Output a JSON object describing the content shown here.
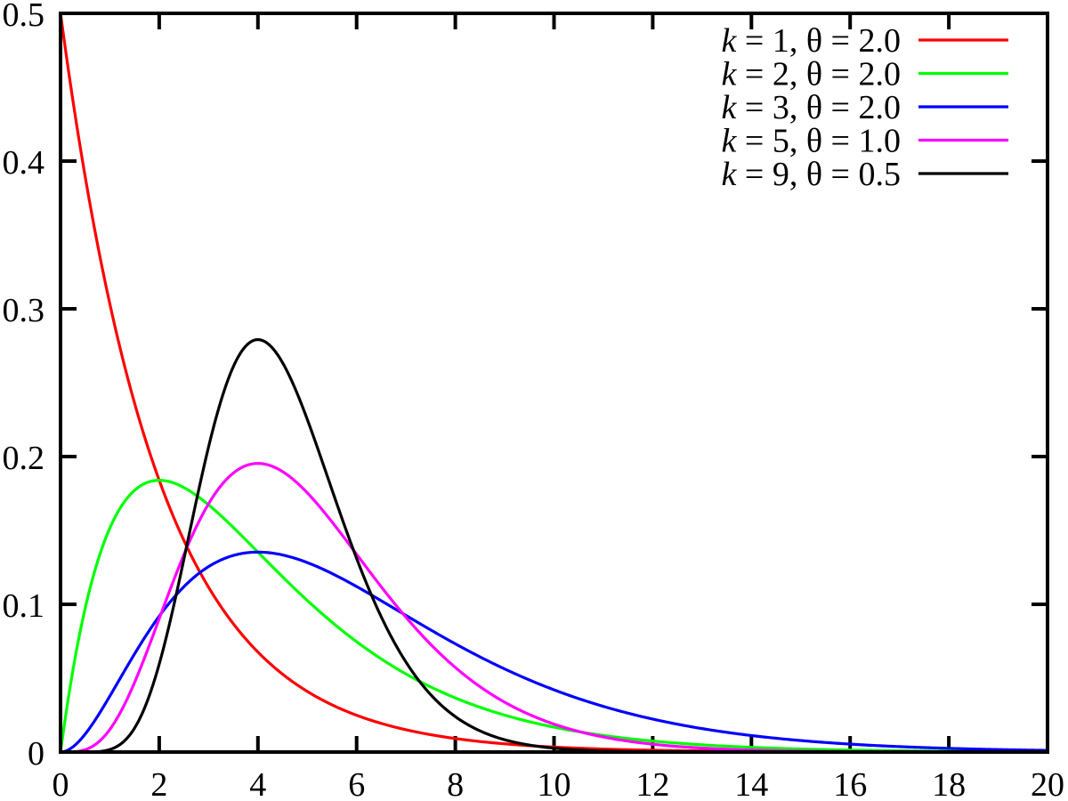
{
  "chart_data": {
    "type": "line",
    "title": "",
    "xlabel": "",
    "ylabel": "",
    "xlim": [
      0,
      20
    ],
    "ylim": [
      0,
      0.5
    ],
    "grid": false,
    "legend_position": "top-right",
    "colors": {
      "background": "#ffffff",
      "axis": "#000000"
    },
    "x_ticks": [
      0,
      2,
      4,
      6,
      8,
      10,
      12,
      14,
      16,
      18,
      20
    ],
    "x_tick_labels": [
      "0",
      "2",
      "4",
      "6",
      "8",
      "10",
      "12",
      "14",
      "16",
      "18",
      "20"
    ],
    "y_ticks": [
      0,
      0.1,
      0.2,
      0.3,
      0.4,
      0.5
    ],
    "y_tick_labels": [
      "0",
      "0.1",
      "0.2",
      "0.3",
      "0.4",
      "0.5"
    ],
    "x_sample_points": [
      0,
      1,
      2,
      3,
      4,
      5,
      6,
      7,
      8,
      9,
      10,
      11,
      12,
      13,
      14,
      15,
      16,
      17,
      18,
      19,
      20
    ],
    "series": [
      {
        "label": "k = 1, θ = 2.0",
        "k": 1,
        "theta": 2.0,
        "color": "#ff0000",
        "y_samples": [
          0.5,
          0.30327,
          0.18394,
          0.11157,
          0.06767,
          0.04104,
          0.02489,
          0.0151,
          0.00916,
          0.00555,
          0.00337,
          0.00204,
          0.00124,
          0.00075,
          0.00046,
          0.00028,
          0.00017,
          0.0001,
          6e-05,
          4e-05,
          2e-05
        ]
      },
      {
        "label": "k = 2, θ = 2.0",
        "k": 2,
        "theta": 2.0,
        "color": "#00ff00",
        "y_samples": [
          0,
          0.15163,
          0.18394,
          0.16735,
          0.13534,
          0.10258,
          0.07468,
          0.05285,
          0.03663,
          0.025,
          0.01684,
          0.01122,
          0.00744,
          0.00489,
          0.00319,
          0.00207,
          0.00134,
          0.00086,
          0.00055,
          0.00035,
          0.00023
        ]
      },
      {
        "label": "k = 3, θ = 2.0",
        "k": 3,
        "theta": 2.0,
        "color": "#0000ff",
        "y_samples": [
          0,
          0.03791,
          0.09197,
          0.12551,
          0.13534,
          0.12823,
          0.11202,
          0.0925,
          0.07326,
          0.05624,
          0.04211,
          0.03086,
          0.02231,
          0.01588,
          0.01117,
          0.00777,
          0.00536,
          0.00366,
          0.00248,
          0.00167,
          0.00112
        ]
      },
      {
        "label": "k = 5, θ = 1.0",
        "k": 5,
        "theta": 1.0,
        "color": "#ff00ff",
        "y_samples": [
          0,
          0.01533,
          0.09022,
          0.16803,
          0.19537,
          0.17547,
          0.13385,
          0.09123,
          0.05725,
          0.03374,
          0.01892,
          0.01019,
          0.00531,
          0.00269,
          0.00132,
          0.00064,
          0.0003,
          0.00014,
          6e-05,
          3e-05,
          1e-05
        ]
      },
      {
        "label": "k = 9, θ = 0.5",
        "k": 9,
        "theta": 0.5,
        "color": "#000000",
        "y_samples": [
          0,
          0.00172,
          0.05954,
          0.20652,
          0.27917,
          0.22519,
          0.13104,
          0.06087,
          0.02398,
          0.00832,
          0.00262,
          0.00075,
          0.00021,
          5e-05,
          1e-05,
          0,
          0,
          0,
          0,
          0,
          0
        ]
      }
    ]
  }
}
